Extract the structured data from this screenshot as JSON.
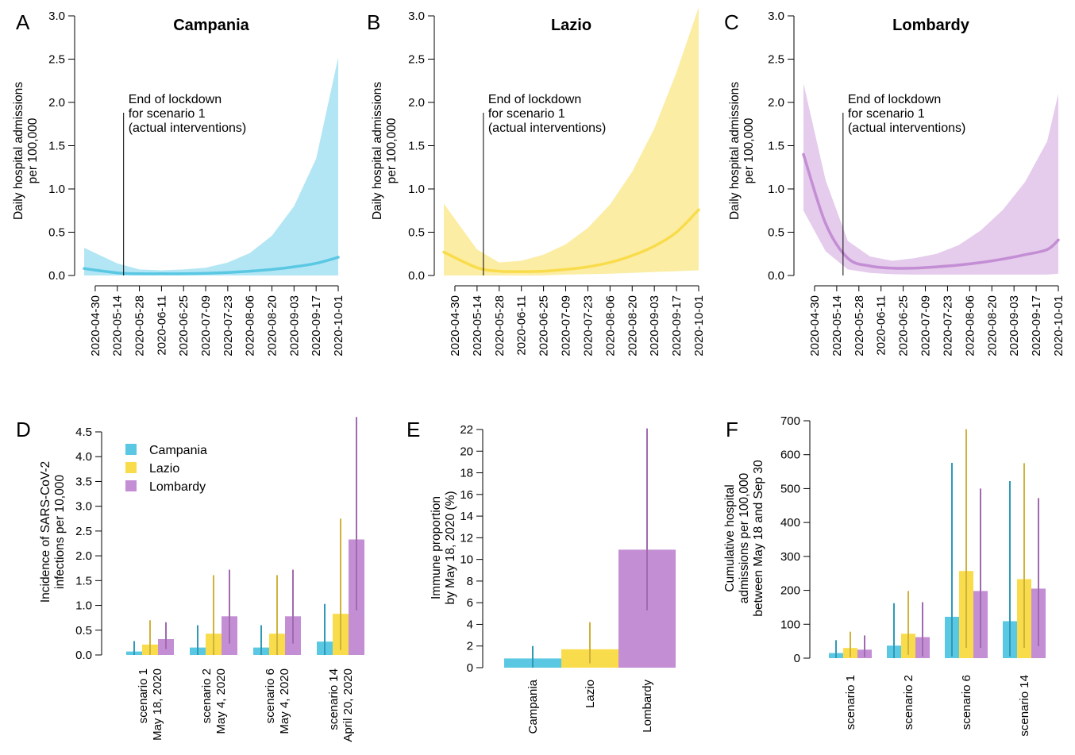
{
  "colors": {
    "Campania": "#5BC8E3",
    "Lazio": "#F9DC4C",
    "Lombardy": "#C38ED4",
    "Campania_band": "#B3E6F4",
    "Lazio_band": "#FCEDA4",
    "Lombardy_band": "#E5CBEC",
    "Campania_err": "#2E9AB8",
    "Lazio_err": "#D0B23A",
    "Lombardy_err": "#9F6BAE"
  },
  "chart_data": [
    {
      "panel": "A",
      "type": "area",
      "title": "Campania",
      "region": "Campania",
      "ylabel": [
        "Daily hospital admissions",
        "per 100,000"
      ],
      "ylim": [
        0,
        3.0
      ],
      "yticks": [
        "0.0",
        "0.5",
        "1.0",
        "1.5",
        "2.0",
        "2.5",
        "3.0"
      ],
      "xticks": [
        "2020-04-30",
        "2020-05-14",
        "2020-05-28",
        "2020-06-11",
        "2020-06-25",
        "2020-07-09",
        "2020-07-23",
        "2020-08-06",
        "2020-08-20",
        "2020-09-03",
        "2020-09-17",
        "2020-10-01"
      ],
      "x": [
        "2020-04-23",
        "2020-05-14",
        "2020-05-28",
        "2020-06-11",
        "2020-06-25",
        "2020-07-09",
        "2020-07-23",
        "2020-08-06",
        "2020-08-20",
        "2020-09-03",
        "2020-09-17",
        "2020-10-01"
      ],
      "median": [
        0.08,
        0.03,
        0.02,
        0.02,
        0.02,
        0.025,
        0.035,
        0.05,
        0.07,
        0.1,
        0.14,
        0.21
      ],
      "upper": [
        0.32,
        0.14,
        0.07,
        0.06,
        0.07,
        0.09,
        0.15,
        0.26,
        0.46,
        0.8,
        1.35,
        2.52
      ],
      "lower": [
        0.0,
        0.0,
        0.0,
        0.0,
        0.0,
        0.0,
        0.0,
        0.0,
        0.0,
        0.0,
        0.0,
        0.0
      ],
      "vline": {
        "x": "2020-05-18",
        "label": [
          "End of lockdown",
          "for scenario 1",
          "(actual interventions)"
        ]
      }
    },
    {
      "panel": "B",
      "type": "area",
      "title": "Lazio",
      "region": "Lazio",
      "ylabel": [
        "Daily hospital admissions",
        "per 100,000"
      ],
      "ylim": [
        0,
        3.0
      ],
      "yticks": [
        "0.0",
        "0.5",
        "1.0",
        "1.5",
        "2.0",
        "2.5",
        "3.0"
      ],
      "xticks": [
        "2020-04-30",
        "2020-05-14",
        "2020-05-28",
        "2020-06-11",
        "2020-06-25",
        "2020-07-09",
        "2020-07-23",
        "2020-08-06",
        "2020-08-20",
        "2020-09-03",
        "2020-09-17",
        "2020-10-01"
      ],
      "x": [
        "2020-04-23",
        "2020-05-14",
        "2020-05-28",
        "2020-06-11",
        "2020-06-25",
        "2020-07-09",
        "2020-07-23",
        "2020-08-06",
        "2020-08-20",
        "2020-09-03",
        "2020-09-17",
        "2020-10-01"
      ],
      "median": [
        0.27,
        0.09,
        0.05,
        0.045,
        0.05,
        0.07,
        0.1,
        0.15,
        0.23,
        0.34,
        0.5,
        0.76
      ],
      "upper": [
        0.83,
        0.3,
        0.15,
        0.17,
        0.24,
        0.36,
        0.55,
        0.82,
        1.2,
        1.7,
        2.35,
        3.1
      ],
      "lower": [
        0.0,
        0.0,
        0.0,
        0.0,
        0.0,
        0.01,
        0.015,
        0.02,
        0.03,
        0.04,
        0.05,
        0.06
      ],
      "vline": {
        "x": "2020-05-18",
        "label": [
          "End of lockdown",
          "for scenario 1",
          "(actual interventions)"
        ]
      }
    },
    {
      "panel": "C",
      "type": "area",
      "title": "Lombardy",
      "region": "Lombardy",
      "ylabel": [
        "Daily hospital admissions",
        "per 100,000"
      ],
      "ylim": [
        0,
        3.0
      ],
      "yticks": [
        "0.0",
        "0.5",
        "1.0",
        "1.5",
        "2.0",
        "2.5",
        "3.0"
      ],
      "xticks": [
        "2020-04-30",
        "2020-05-14",
        "2020-05-28",
        "2020-06-11",
        "2020-06-25",
        "2020-07-09",
        "2020-07-23",
        "2020-08-06",
        "2020-08-20",
        "2020-09-03",
        "2020-09-17",
        "2020-10-01"
      ],
      "x": [
        "2020-04-23",
        "2020-05-07",
        "2020-05-21",
        "2020-06-04",
        "2020-06-18",
        "2020-07-02",
        "2020-07-16",
        "2020-07-30",
        "2020-08-13",
        "2020-08-27",
        "2020-09-10",
        "2020-09-24",
        "2020-10-01"
      ],
      "median": [
        1.4,
        0.6,
        0.2,
        0.11,
        0.085,
        0.085,
        0.1,
        0.12,
        0.15,
        0.19,
        0.24,
        0.3,
        0.41
      ],
      "upper": [
        2.22,
        1.1,
        0.4,
        0.22,
        0.17,
        0.2,
        0.25,
        0.35,
        0.52,
        0.76,
        1.08,
        1.55,
        2.1
      ],
      "lower": [
        0.75,
        0.28,
        0.07,
        0.03,
        0.015,
        0.01,
        0.01,
        0.01,
        0.01,
        0.01,
        0.01,
        0.01,
        0.02
      ],
      "vline": {
        "x": "2020-05-18",
        "label": [
          "End of lockdown",
          "for scenario 1",
          "(actual interventions)"
        ]
      }
    },
    {
      "panel": "D",
      "type": "bar",
      "ylabel": [
        "Incidence of SARS-CoV-2",
        "infections per 10,000"
      ],
      "ylim": [
        0,
        4.5
      ],
      "yticks": [
        "0.0",
        "0.5",
        "1.0",
        "1.5",
        "2.0",
        "2.5",
        "3.0",
        "3.5",
        "4.0",
        "4.5"
      ],
      "categories": [
        [
          "scenario 1",
          "May 18, 2020"
        ],
        [
          "scenario 2",
          "May 4, 2020"
        ],
        [
          "scenario 6",
          "May 4, 2020"
        ],
        [
          "scenario 14",
          "April 20, 2020"
        ]
      ],
      "series": [
        {
          "name": "Campania",
          "values": [
            0.07,
            0.15,
            0.15,
            0.27
          ],
          "low": [
            0.0,
            0.0,
            0.0,
            0.0
          ],
          "high": [
            0.28,
            0.6,
            0.6,
            1.03
          ]
        },
        {
          "name": "Lazio",
          "values": [
            0.21,
            0.43,
            0.43,
            0.83
          ],
          "low": [
            0.0,
            0.0,
            0.0,
            0.1
          ],
          "high": [
            0.7,
            1.61,
            1.61,
            2.75
          ]
        },
        {
          "name": "Lombardy",
          "values": [
            0.32,
            0.78,
            0.78,
            2.33
          ],
          "low": [
            0.12,
            0.23,
            0.23,
            0.9
          ],
          "high": [
            0.66,
            1.72,
            1.72,
            4.8
          ]
        }
      ],
      "legend": [
        "Campania",
        "Lazio",
        "Lombardy"
      ]
    },
    {
      "panel": "E",
      "type": "bar",
      "ylabel": [
        "Immune proportion",
        "by May 18, 2020 (%)"
      ],
      "ylim": [
        0,
        22
      ],
      "yticks": [
        "0",
        "2",
        "4",
        "6",
        "8",
        "10",
        "12",
        "14",
        "16",
        "18",
        "20",
        "22"
      ],
      "categories": [
        "Campania",
        "Lazio",
        "Lombardy"
      ],
      "values": [
        0.85,
        1.7,
        10.9
      ],
      "low": [
        0.0,
        0.4,
        5.3
      ],
      "high": [
        2.0,
        4.2,
        22.1
      ]
    },
    {
      "panel": "F",
      "type": "bar",
      "ylabel": [
        "Cumulative hospital",
        "admissions per 100,000",
        "between May 18 and Sep 30"
      ],
      "ylim": [
        0,
        700
      ],
      "yticks": [
        "0",
        "100",
        "200",
        "300",
        "400",
        "500",
        "600",
        "700"
      ],
      "categories": [
        "scenario 1",
        "scenario 2",
        "scenario 6",
        "scenario 14"
      ],
      "series": [
        {
          "name": "Campania",
          "values": [
            15,
            37,
            122,
            109
          ],
          "low": [
            0,
            0,
            5,
            5
          ],
          "high": [
            53,
            162,
            576,
            522
          ]
        },
        {
          "name": "Lazio",
          "values": [
            30,
            72,
            257,
            233
          ],
          "low": [
            3,
            10,
            30,
            30
          ],
          "high": [
            78,
            198,
            675,
            575
          ]
        },
        {
          "name": "Lombardy",
          "values": [
            25,
            62,
            198,
            205
          ],
          "low": [
            3,
            5,
            30,
            35
          ],
          "high": [
            67,
            165,
            500,
            472
          ]
        }
      ]
    }
  ]
}
